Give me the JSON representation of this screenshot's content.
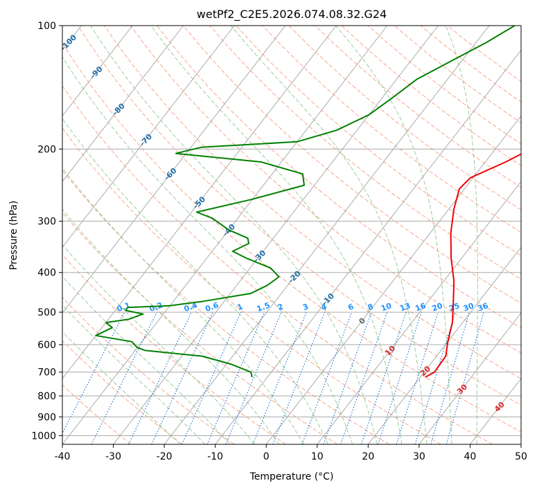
{
  "chart_data": {
    "type": "line",
    "chart_kind": "skew-T log-P diagram",
    "title": "wetPf2_C2E5.2026.074.08.32.G24",
    "xlabel": "Temperature (°C)",
    "ylabel": "Pressure (hPa)",
    "xlim": [
      -40,
      50
    ],
    "ylim": [
      1050,
      100
    ],
    "x_ticks": [
      -40,
      -30,
      -20,
      -10,
      0,
      10,
      20,
      30,
      40,
      50
    ],
    "y_ticks": [
      100,
      200,
      300,
      400,
      500,
      600,
      700,
      800,
      900,
      1000
    ],
    "grid": true,
    "series": [
      {
        "name": "temperature",
        "color": "#ee0000",
        "x_label": "temperature (°C)",
        "y_label": "pressure (hPa)",
        "points": [
          [
            21.0,
            720
          ],
          [
            22.0,
            700
          ],
          [
            21.8,
            640
          ],
          [
            20.0,
            590
          ],
          [
            18.0,
            530
          ],
          [
            16.0,
            490
          ],
          [
            12.0,
            420
          ],
          [
            8.0,
            370
          ],
          [
            4.0,
            320
          ],
          [
            1.0,
            280
          ],
          [
            -1.0,
            250
          ],
          [
            -0.5,
            235
          ],
          [
            4.0,
            215
          ],
          [
            8.0,
            195
          ],
          [
            8.5,
            180
          ],
          [
            9.0,
            160
          ],
          [
            9.0,
            140
          ],
          [
            8.0,
            125
          ],
          [
            8.5,
            110
          ],
          [
            9.0,
            100
          ]
        ]
      },
      {
        "name": "dewpoint",
        "color": "#008000",
        "x_label": "dewpoint (°C)",
        "y_label": "pressure (hPa)",
        "points": [
          [
            -13,
            720
          ],
          [
            -14,
            700
          ],
          [
            -19,
            670
          ],
          [
            -26,
            640
          ],
          [
            -38,
            620
          ],
          [
            -40,
            610
          ],
          [
            -42,
            590
          ],
          [
            -50,
            570
          ],
          [
            -48,
            545
          ],
          [
            -50,
            530
          ],
          [
            -46,
            520
          ],
          [
            -44,
            505
          ],
          [
            -48,
            495
          ],
          [
            -48,
            487
          ],
          [
            -40,
            482
          ],
          [
            -34,
            470
          ],
          [
            -26,
            450
          ],
          [
            -24,
            430
          ],
          [
            -23,
            410
          ],
          [
            -26,
            390
          ],
          [
            -32,
            370
          ],
          [
            -36,
            355
          ],
          [
            -34,
            340
          ],
          [
            -35,
            330
          ],
          [
            -40,
            315
          ],
          [
            -45,
            295
          ],
          [
            -49,
            285
          ],
          [
            -40,
            265
          ],
          [
            -32,
            245
          ],
          [
            -34,
            230
          ],
          [
            -44,
            215
          ],
          [
            -62,
            205
          ],
          [
            -58,
            198
          ],
          [
            -40,
            192
          ],
          [
            -34,
            180
          ],
          [
            -30,
            165
          ],
          [
            -28,
            150
          ],
          [
            -26,
            135
          ],
          [
            -23,
            125
          ],
          [
            -18,
            110
          ],
          [
            -15,
            100
          ]
        ]
      }
    ],
    "isotherm_labels": [
      "-100",
      "-90",
      "-80",
      "-70",
      "-60",
      "-50",
      "-40",
      "-30",
      "-20",
      "-10",
      "0",
      "10",
      "20",
      "30",
      "40"
    ],
    "isotherm_label_values": [
      -100,
      -90,
      -80,
      -70,
      -60,
      -50,
      -40,
      -30,
      -20,
      -10,
      0,
      10,
      20,
      30,
      40
    ],
    "isotherm_label_pressures": [
      110,
      130,
      160,
      190,
      230,
      270,
      315,
      365,
      410,
      465,
      525,
      620,
      695,
      770,
      850
    ],
    "mixing_ratio_labels": [
      "0.1",
      "0.2",
      "0.4",
      "0.6",
      "1",
      "1.5",
      "2",
      "3",
      "4",
      "6",
      "8",
      "10",
      "13",
      "16",
      "20",
      "25",
      "30",
      "36"
    ],
    "mixing_ratio_values": [
      0.1,
      0.2,
      0.4,
      0.6,
      1,
      1.5,
      2,
      3,
      4,
      6,
      8,
      10,
      13,
      16,
      20,
      25,
      30,
      36
    ],
    "mixing_ratio_top_pressure": 500
  },
  "colors": {
    "isotherm_line": "#aaaaaa",
    "isobar_line": "#aaaaaa",
    "dry_adiabat": "#f8a58a",
    "moist_adiabat": "#9acd9a",
    "mixing_ratio_line": "#1e77d2",
    "mixing_ratio_label": "#1e90ff",
    "isotherm_label_cold": "#1f6fa8",
    "isotherm_label_zero": "#666666",
    "isotherm_label_warm": "#d62728",
    "temperature": "#ee0000",
    "dewpoint": "#008000"
  }
}
